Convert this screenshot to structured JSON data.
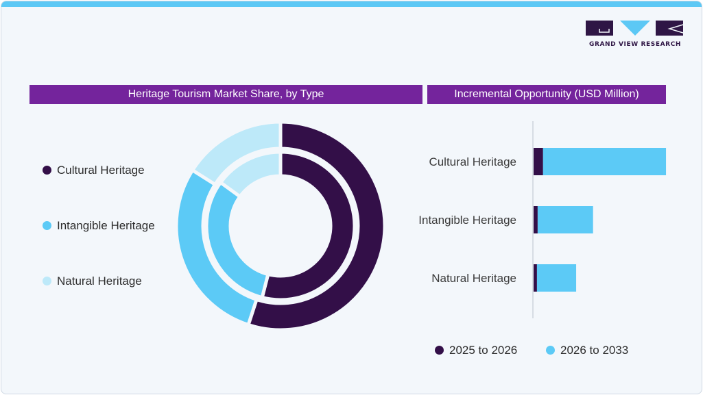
{
  "brand": {
    "name": "GRAND VIEW RESEARCH",
    "colors": {
      "dark": "#2f1645",
      "accent": "#5cc8f5",
      "panel": "#74249c"
    }
  },
  "panels": {
    "left_title": "Heritage Tourism Market Share, by Type",
    "right_title": "Incremental Opportunity (USD Million)"
  },
  "chart_data": [
    {
      "type": "pie",
      "variant": "double-donut",
      "title": "Heritage Tourism Market Share, by Type",
      "categories": [
        "Cultural Heritage",
        "Intangible Heritage",
        "Natural Heritage"
      ],
      "colors": [
        "#330f48",
        "#5ccaf6",
        "#bde9f9"
      ],
      "series": [
        {
          "ring": "outer",
          "values": [
            55,
            29,
            16
          ]
        },
        {
          "ring": "inner",
          "values": [
            54,
            31,
            15
          ]
        }
      ],
      "legend_position": "left"
    },
    {
      "type": "bar",
      "orientation": "horizontal",
      "stacked": true,
      "title": "Incremental Opportunity (USD Million)",
      "categories": [
        "Cultural Heritage",
        "Intangible Heritage",
        "Natural Heritage"
      ],
      "series": [
        {
          "name": "2025 to 2026",
          "color": "#330f48",
          "values": [
            14,
            6,
            5
          ]
        },
        {
          "name": "2026 to 2033",
          "color": "#5ccaf6",
          "values": [
            182,
            82,
            58
          ]
        }
      ],
      "xlim": [
        0,
        200
      ],
      "grid": false,
      "legend_position": "bottom"
    }
  ]
}
